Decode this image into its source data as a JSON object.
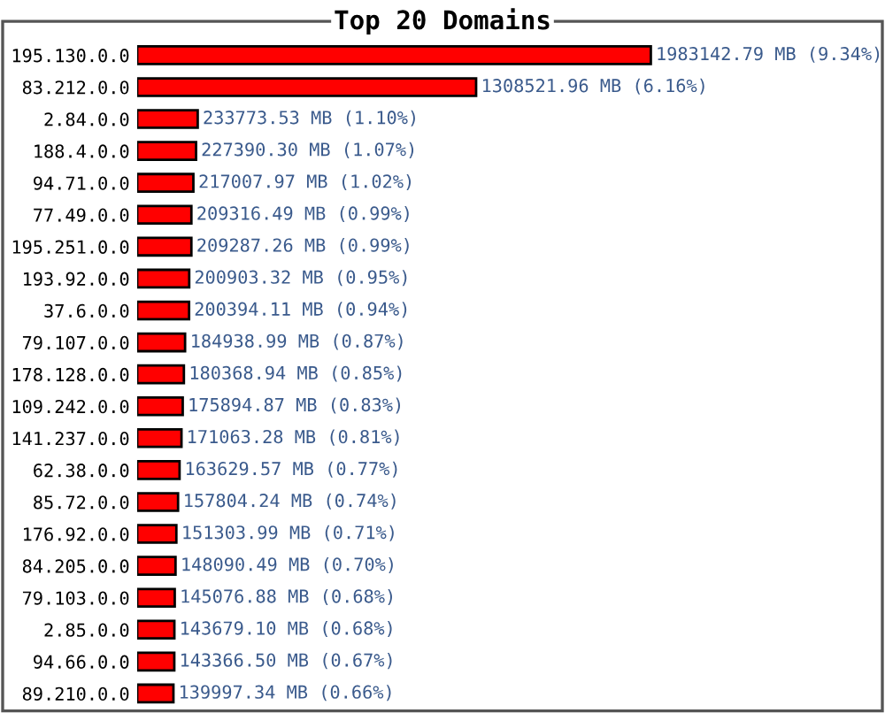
{
  "chart_data": {
    "type": "bar",
    "orientation": "horizontal",
    "title": "Top 20 Domains",
    "categories": [
      "195.130.0.0",
      "83.212.0.0",
      "2.84.0.0",
      "188.4.0.0",
      "94.71.0.0",
      "77.49.0.0",
      "195.251.0.0",
      "193.92.0.0",
      "37.6.0.0",
      "79.107.0.0",
      "178.128.0.0",
      "109.242.0.0",
      "141.237.0.0",
      "62.38.0.0",
      "85.72.0.0",
      "176.92.0.0",
      "84.205.0.0",
      "79.103.0.0",
      "2.85.0.0",
      "94.66.0.0",
      "89.210.0.0"
    ],
    "values": [
      1983142.79,
      1308521.96,
      233773.53,
      227390.3,
      217007.97,
      209316.49,
      209287.26,
      200903.32,
      200394.11,
      184938.99,
      180368.94,
      175894.87,
      171063.28,
      163629.57,
      157804.24,
      151303.99,
      148090.49,
      145076.88,
      143679.1,
      143366.5,
      139997.34
    ],
    "value_labels": [
      "1983142.79 MB (9.34%)",
      "1308521.96 MB (6.16%)",
      "233773.53 MB (1.10%)",
      "227390.30 MB (1.07%)",
      "217007.97 MB (1.02%)",
      "209316.49 MB (0.99%)",
      "209287.26 MB (0.99%)",
      "200903.32 MB (0.95%)",
      "200394.11 MB (0.94%)",
      "184938.99 MB (0.87%)",
      "180368.94 MB (0.85%)",
      "175894.87 MB (0.83%)",
      "171063.28 MB (0.81%)",
      "163629.57 MB (0.77%)",
      "157804.24 MB (0.74%)",
      "151303.99 MB (0.71%)",
      "148090.49 MB (0.70%)",
      "145076.88 MB (0.68%)",
      "143679.10 MB (0.68%)",
      "143366.50 MB (0.67%)",
      "139997.34 MB (0.66%)"
    ],
    "color": "#ff0000",
    "grid": false,
    "legend": false
  }
}
